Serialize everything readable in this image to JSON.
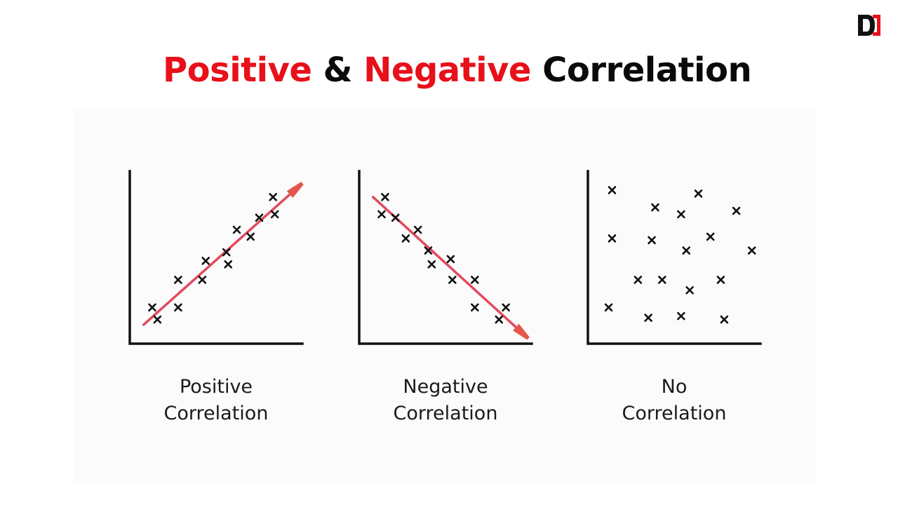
{
  "header": {
    "title_part1": "Positive",
    "title_part2": "&",
    "title_part3": "Negative",
    "title_part4": "Correlation",
    "title_red": "#e8101a",
    "title_black": "#0a0a0a"
  },
  "logo": {
    "icon": "d-logo-icon",
    "color": "#e8101a"
  },
  "colors": {
    "trend_line": "#e24a5e",
    "arrow_head": "#e4574c",
    "marker": "#111111",
    "axis": "#111111"
  },
  "chart_data": [
    {
      "type": "scatter",
      "title": "",
      "caption_line1": "Positive",
      "caption_line2": "Correlation",
      "xlim": [
        0,
        10
      ],
      "ylim": [
        0,
        10
      ],
      "points": [
        {
          "x": 1.3,
          "y": 2.1
        },
        {
          "x": 1.6,
          "y": 1.4
        },
        {
          "x": 2.8,
          "y": 3.7
        },
        {
          "x": 2.8,
          "y": 2.1
        },
        {
          "x": 4.4,
          "y": 4.8
        },
        {
          "x": 4.2,
          "y": 3.7
        },
        {
          "x": 5.7,
          "y": 4.6
        },
        {
          "x": 5.6,
          "y": 5.3
        },
        {
          "x": 6.2,
          "y": 6.6
        },
        {
          "x": 7.0,
          "y": 6.2
        },
        {
          "x": 7.5,
          "y": 7.3
        },
        {
          "x": 8.3,
          "y": 8.5
        },
        {
          "x": 8.4,
          "y": 7.5
        }
      ],
      "trend": {
        "start": {
          "x": 0.8,
          "y": 1.1
        },
        "end": {
          "x": 10.0,
          "y": 9.3
        },
        "direction": "up-right"
      }
    },
    {
      "type": "scatter",
      "title": "",
      "caption_line1": "Negative",
      "caption_line2": "Correlation",
      "xlim": [
        0,
        10
      ],
      "ylim": [
        0,
        10
      ],
      "points": [
        {
          "x": 1.5,
          "y": 8.5
        },
        {
          "x": 1.3,
          "y": 7.5
        },
        {
          "x": 2.1,
          "y": 7.3
        },
        {
          "x": 2.7,
          "y": 6.1
        },
        {
          "x": 3.4,
          "y": 6.6
        },
        {
          "x": 4.0,
          "y": 5.4
        },
        {
          "x": 4.2,
          "y": 4.6
        },
        {
          "x": 5.3,
          "y": 4.9
        },
        {
          "x": 5.4,
          "y": 3.7
        },
        {
          "x": 6.7,
          "y": 3.7
        },
        {
          "x": 6.7,
          "y": 2.1
        },
        {
          "x": 8.1,
          "y": 1.4
        },
        {
          "x": 8.5,
          "y": 2.1
        }
      ],
      "trend": {
        "start": {
          "x": 0.8,
          "y": 8.5
        },
        "end": {
          "x": 9.8,
          "y": 0.3
        },
        "direction": "down-right"
      }
    },
    {
      "type": "scatter",
      "title": "",
      "caption_line1": "No",
      "caption_line2": "Correlation",
      "xlim": [
        0,
        10
      ],
      "ylim": [
        0,
        10
      ],
      "points": [
        {
          "x": 1.4,
          "y": 8.9
        },
        {
          "x": 3.9,
          "y": 7.9
        },
        {
          "x": 5.4,
          "y": 7.5
        },
        {
          "x": 6.4,
          "y": 8.7
        },
        {
          "x": 8.6,
          "y": 7.7
        },
        {
          "x": 1.4,
          "y": 6.1
        },
        {
          "x": 3.7,
          "y": 6.0
        },
        {
          "x": 5.7,
          "y": 5.4
        },
        {
          "x": 7.1,
          "y": 6.2
        },
        {
          "x": 9.5,
          "y": 5.4
        },
        {
          "x": 2.9,
          "y": 3.7
        },
        {
          "x": 4.3,
          "y": 3.7
        },
        {
          "x": 5.9,
          "y": 3.1
        },
        {
          "x": 7.7,
          "y": 3.7
        },
        {
          "x": 1.2,
          "y": 2.1
        },
        {
          "x": 3.5,
          "y": 1.5
        },
        {
          "x": 5.4,
          "y": 1.6
        },
        {
          "x": 7.9,
          "y": 1.4
        }
      ]
    }
  ]
}
